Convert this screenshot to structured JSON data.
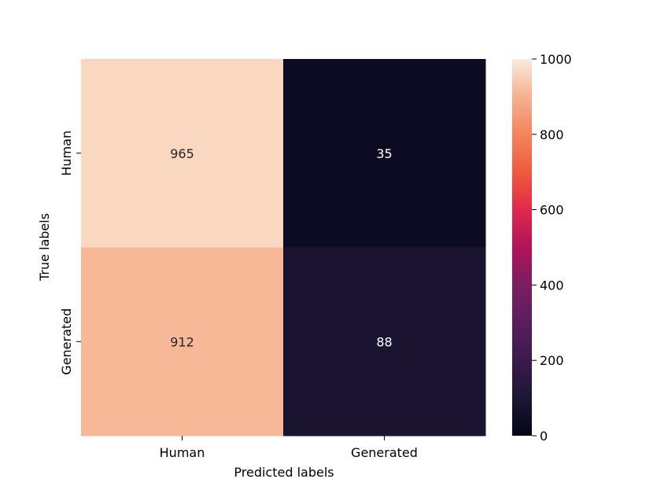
{
  "chart_data": {
    "type": "heatmap",
    "title": "",
    "xlabel": "Predicted labels",
    "ylabel": "True labels",
    "x_categories": [
      "Human",
      "Generated"
    ],
    "y_categories": [
      "Human",
      "Generated"
    ],
    "values": [
      [
        965,
        35
      ],
      [
        912,
        88
      ]
    ],
    "value_labels": [
      [
        "965",
        "35"
      ],
      [
        "912",
        "88"
      ]
    ],
    "colorbar": {
      "vmin": 0,
      "vmax": 1000,
      "ticks": [
        0,
        200,
        400,
        600,
        800,
        1000
      ],
      "tick_labels": [
        "0",
        "200",
        "400",
        "600",
        "800",
        "1000"
      ],
      "colormap": "rocket"
    },
    "grid": false,
    "legend": "colorbar-right"
  }
}
